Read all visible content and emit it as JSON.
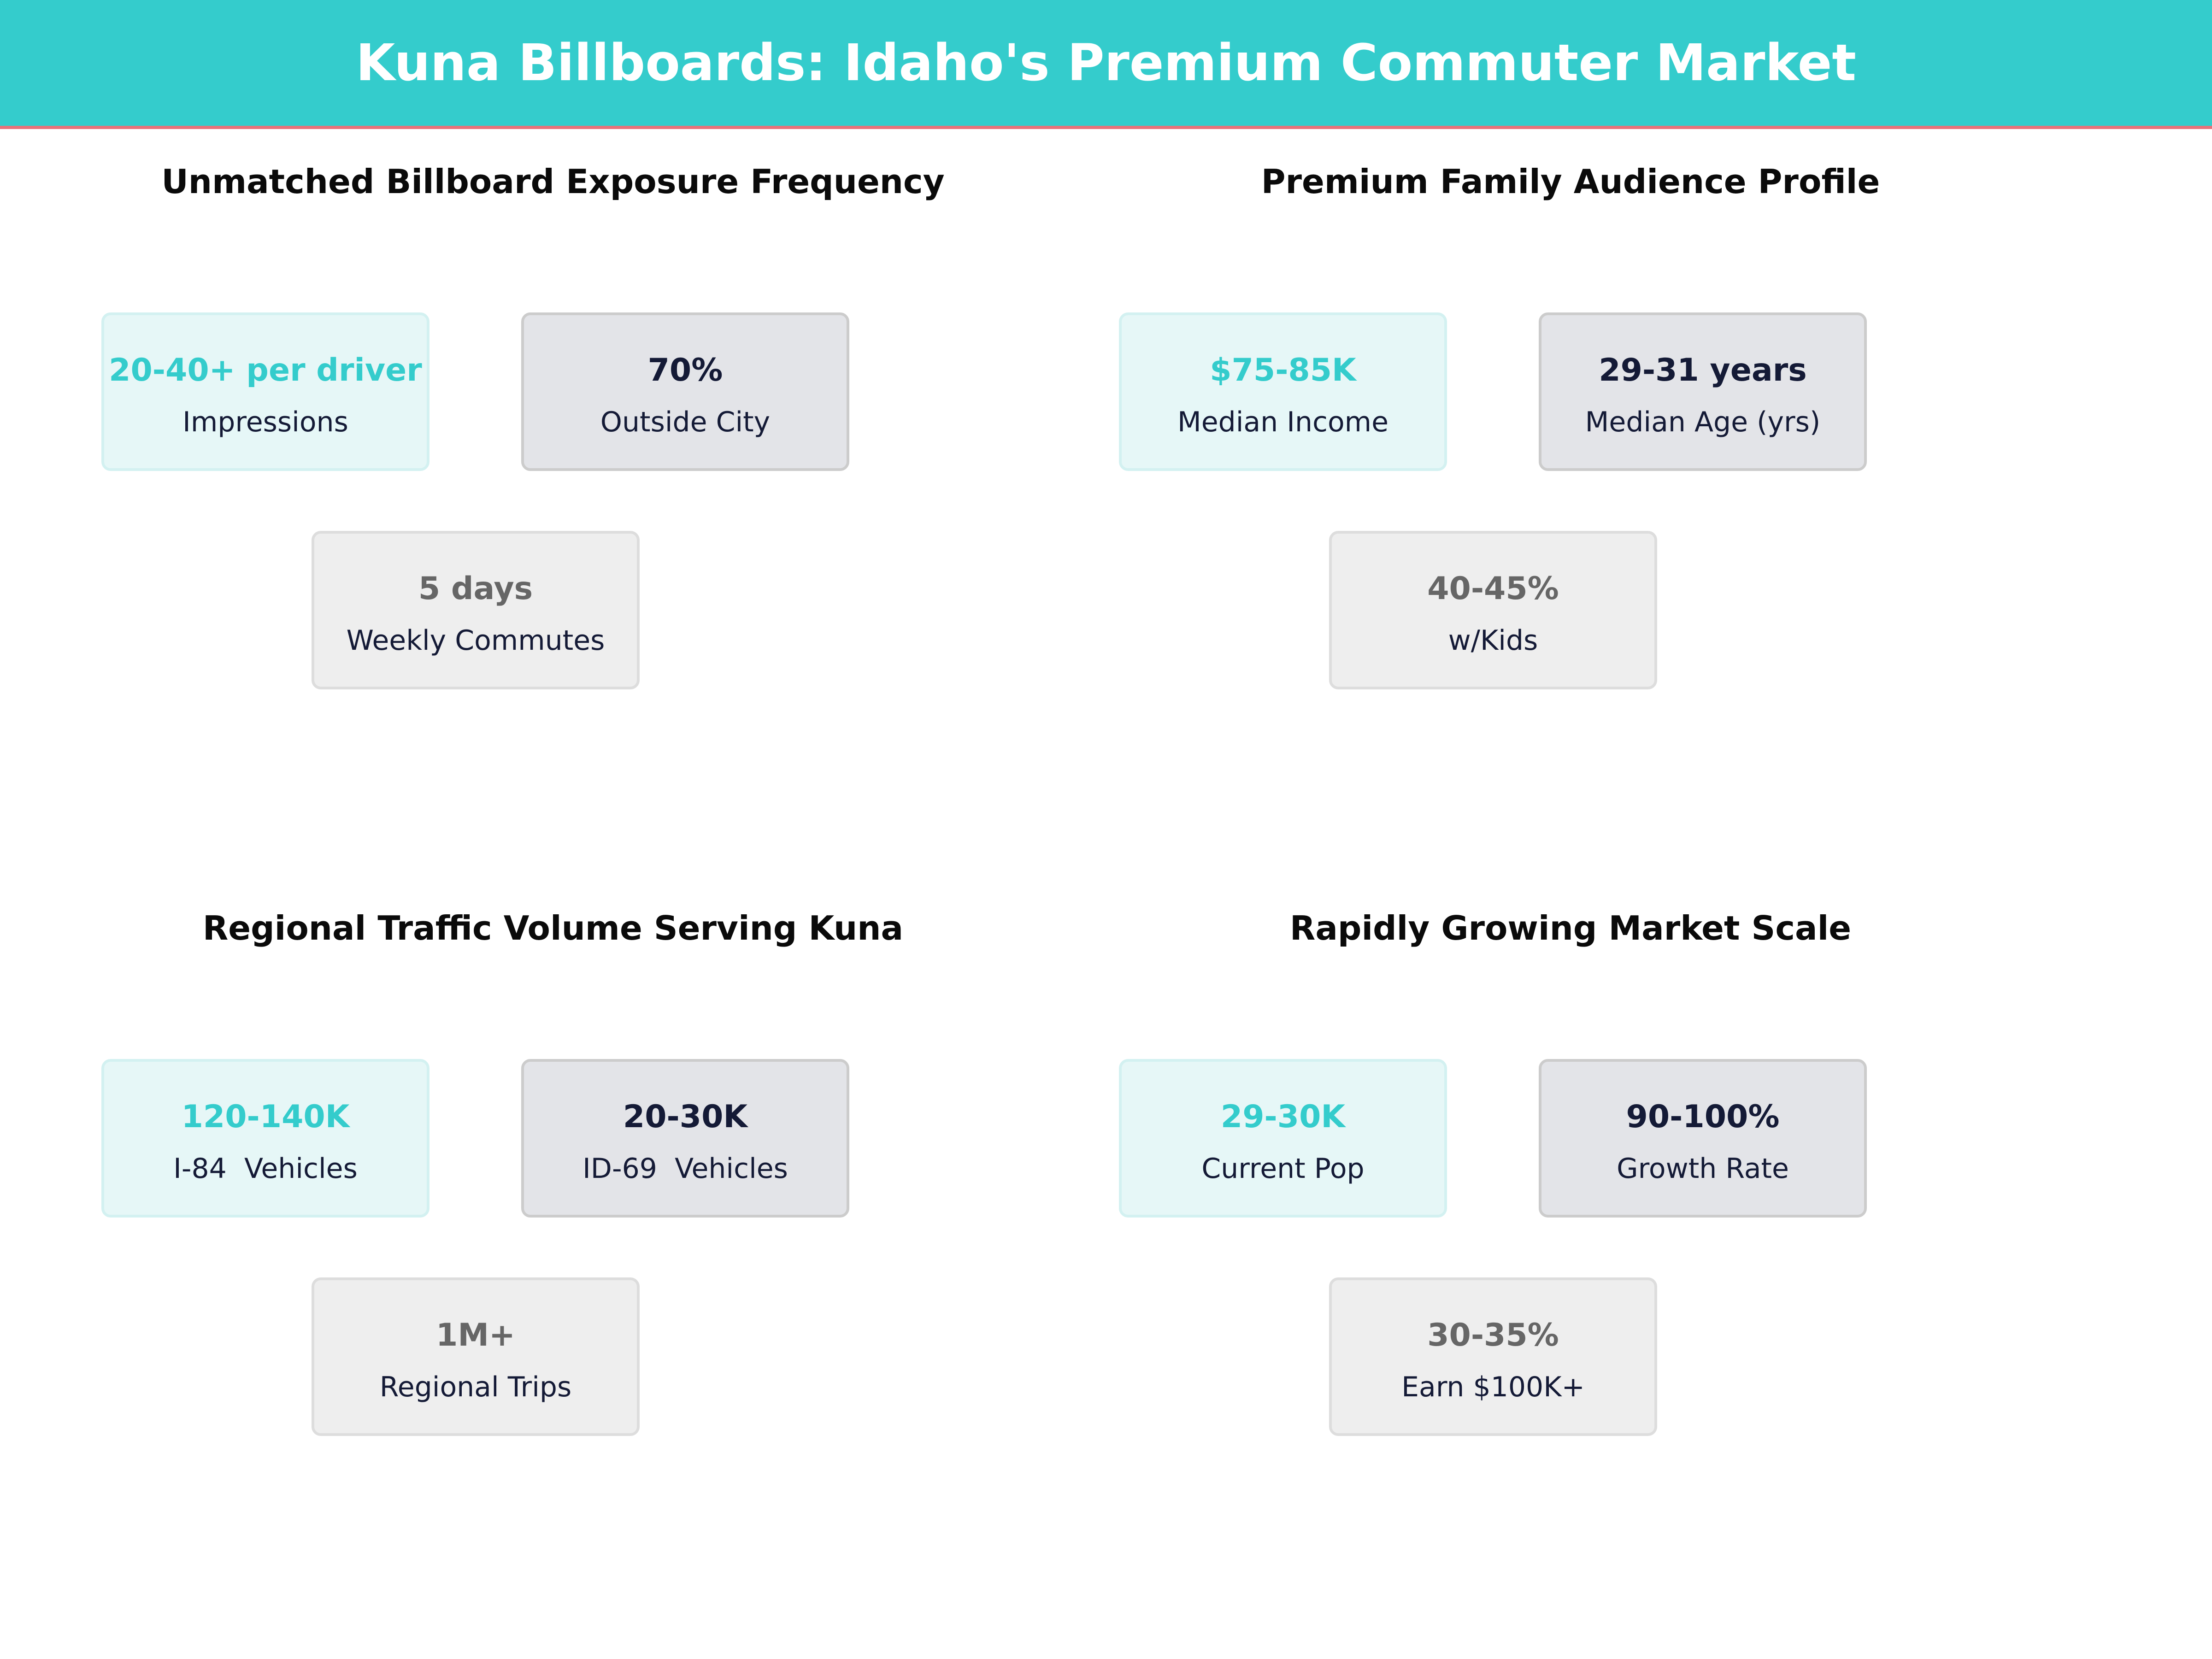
{
  "header": {
    "title": "Kuna Billboards: Idaho's Premium Commuter Market",
    "background_color": "#34cccc",
    "accent_line_color": "#e8727a"
  },
  "colors": {
    "highlight": "#34cccc",
    "dark": "#141a36",
    "muted": "#666666"
  },
  "sections": [
    {
      "title": "Unmatched Billboard Exposure Frequency",
      "cards": [
        {
          "value": "20-40+ per driver",
          "label": "Impressions"
        },
        {
          "value": "70%",
          "label": "Outside City"
        },
        {
          "value": "5 days",
          "label": "Weekly Commutes"
        }
      ]
    },
    {
      "title": "Premium Family Audience Profile",
      "cards": [
        {
          "value": "$75-85K",
          "label": "Median Income"
        },
        {
          "value": "29-31 years",
          "label": "Median Age (yrs)"
        },
        {
          "value": "40-45%",
          "label": "w/Kids"
        }
      ]
    },
    {
      "title": "Regional Traffic Volume Serving Kuna",
      "cards": [
        {
          "value": "120-140K",
          "label": "I-84  Vehicles"
        },
        {
          "value": "20-30K",
          "label": "ID-69  Vehicles"
        },
        {
          "value": "1M+",
          "label": "Regional Trips"
        }
      ]
    },
    {
      "title": "Rapidly Growing Market Scale",
      "cards": [
        {
          "value": "29-30K",
          "label": "Current Pop"
        },
        {
          "value": "90-100%",
          "label": "Growth Rate"
        },
        {
          "value": "30-35%",
          "label": "Earn $100K+"
        }
      ]
    }
  ]
}
